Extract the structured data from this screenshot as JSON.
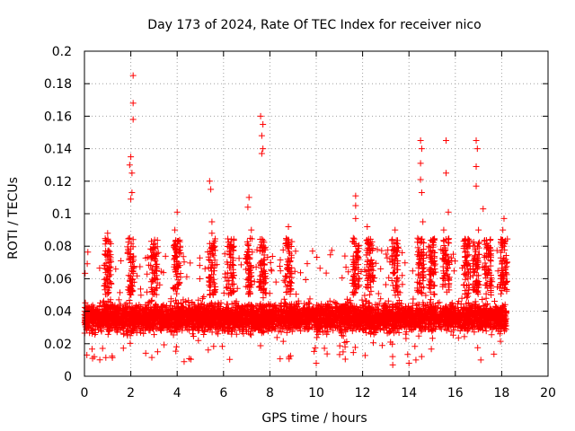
{
  "chart_data": {
    "type": "scatter",
    "title": "Day 173 of 2024, Rate Of TEC Index for receiver nico",
    "xlabel": "GPS time / hours",
    "ylabel": "ROTI / TECUs",
    "xlim": [
      0,
      20
    ],
    "ylim": [
      0,
      0.2
    ],
    "xticks": [
      0,
      2,
      4,
      6,
      8,
      10,
      12,
      14,
      16,
      18,
      20
    ],
    "yticks": [
      0,
      0.02,
      0.04,
      0.06,
      0.08,
      0.1,
      0.12,
      0.14,
      0.16,
      0.18,
      0.2
    ],
    "xtick_labels": [
      "0",
      "2",
      "4",
      "6",
      "8",
      "10",
      "12",
      "14",
      "16",
      "18",
      "20"
    ],
    "ytick_labels": [
      "0",
      "0.02",
      "0.04",
      "0.06",
      "0.08",
      "0.1",
      "0.12",
      "0.14",
      "0.16",
      "0.18",
      "0.2"
    ],
    "grid": true,
    "marker": "+",
    "color": "#ff0000",
    "x_data_range": [
      0,
      18.2
    ],
    "bulk_band": [
      0.01,
      0.07
    ],
    "series": [
      {
        "name": "ROTI",
        "notable_points": [
          {
            "x": 2.1,
            "y": 0.185
          },
          {
            "x": 2.1,
            "y": 0.168
          },
          {
            "x": 2.1,
            "y": 0.158
          },
          {
            "x": 2.0,
            "y": 0.135
          },
          {
            "x": 1.95,
            "y": 0.13
          },
          {
            "x": 2.05,
            "y": 0.125
          },
          {
            "x": 2.05,
            "y": 0.113
          },
          {
            "x": 2.0,
            "y": 0.109
          },
          {
            "x": 1.95,
            "y": 0.085
          },
          {
            "x": 1.0,
            "y": 0.088
          },
          {
            "x": 4.0,
            "y": 0.101
          },
          {
            "x": 3.9,
            "y": 0.09
          },
          {
            "x": 5.4,
            "y": 0.12
          },
          {
            "x": 5.45,
            "y": 0.115
          },
          {
            "x": 5.5,
            "y": 0.095
          },
          {
            "x": 5.5,
            "y": 0.088
          },
          {
            "x": 7.6,
            "y": 0.16
          },
          {
            "x": 7.7,
            "y": 0.155
          },
          {
            "x": 7.65,
            "y": 0.148
          },
          {
            "x": 7.7,
            "y": 0.14
          },
          {
            "x": 7.65,
            "y": 0.137
          },
          {
            "x": 7.1,
            "y": 0.11
          },
          {
            "x": 7.05,
            "y": 0.104
          },
          {
            "x": 7.2,
            "y": 0.09
          },
          {
            "x": 8.8,
            "y": 0.092
          },
          {
            "x": 11.7,
            "y": 0.111
          },
          {
            "x": 11.7,
            "y": 0.105
          },
          {
            "x": 11.7,
            "y": 0.097
          },
          {
            "x": 11.6,
            "y": 0.085
          },
          {
            "x": 12.2,
            "y": 0.092
          },
          {
            "x": 13.4,
            "y": 0.09
          },
          {
            "x": 14.5,
            "y": 0.145
          },
          {
            "x": 14.55,
            "y": 0.14
          },
          {
            "x": 14.5,
            "y": 0.131
          },
          {
            "x": 14.5,
            "y": 0.121
          },
          {
            "x": 14.55,
            "y": 0.113
          },
          {
            "x": 14.6,
            "y": 0.095
          },
          {
            "x": 15.6,
            "y": 0.145
          },
          {
            "x": 15.6,
            "y": 0.125
          },
          {
            "x": 15.7,
            "y": 0.101
          },
          {
            "x": 15.5,
            "y": 0.09
          },
          {
            "x": 16.9,
            "y": 0.145
          },
          {
            "x": 16.95,
            "y": 0.14
          },
          {
            "x": 16.9,
            "y": 0.129
          },
          {
            "x": 16.9,
            "y": 0.117
          },
          {
            "x": 17.2,
            "y": 0.103
          },
          {
            "x": 17.0,
            "y": 0.09
          },
          {
            "x": 18.1,
            "y": 0.097
          },
          {
            "x": 18.05,
            "y": 0.09
          },
          {
            "x": 18.1,
            "y": 0.08
          },
          {
            "x": 0.35,
            "y": 0.011
          },
          {
            "x": 4.3,
            "y": 0.009
          },
          {
            "x": 10.0,
            "y": 0.008
          },
          {
            "x": 13.3,
            "y": 0.007
          },
          {
            "x": 14.0,
            "y": 0.008
          },
          {
            "x": 14.3,
            "y": 0.01
          },
          {
            "x": 17.1,
            "y": 0.01
          }
        ]
      }
    ]
  }
}
